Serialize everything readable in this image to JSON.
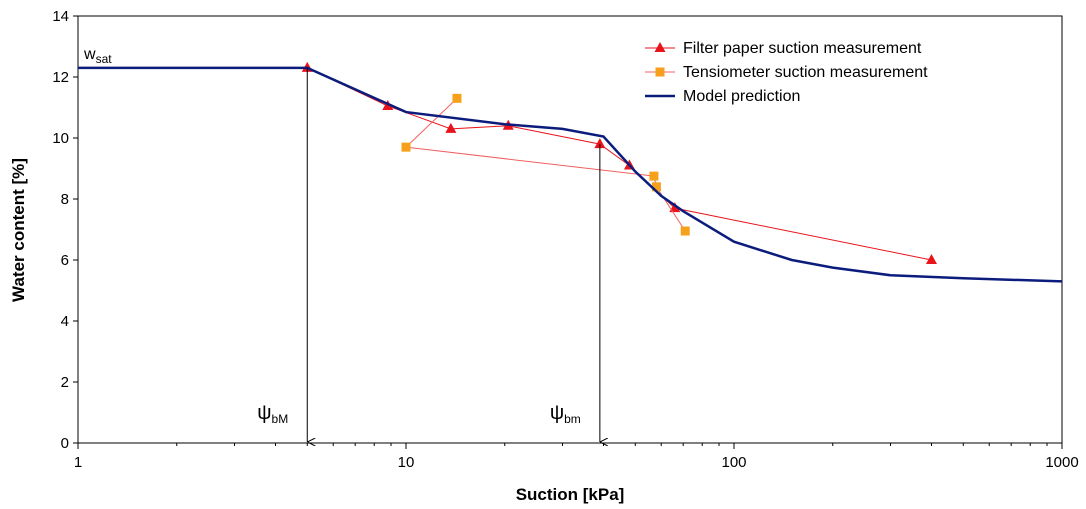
{
  "chart_data": {
    "type": "line",
    "x_label": "Suction [kPa]",
    "y_label": "Water content [%]",
    "xlog": true,
    "xlim": [
      1,
      1000
    ],
    "xticks": [
      1,
      10,
      100,
      1000
    ],
    "xminorticks": [
      2,
      3,
      4,
      5,
      6,
      7,
      8,
      9,
      20,
      30,
      40,
      50,
      60,
      70,
      80,
      90,
      200,
      300,
      400,
      500,
      600,
      700,
      800,
      900
    ],
    "ylim": [
      0,
      14
    ],
    "yticks": [
      0,
      2,
      4,
      6,
      8,
      10,
      12,
      14
    ],
    "legend": "top-right",
    "series": [
      {
        "name": "Filter paper suction measurement",
        "color": "#e8131b",
        "line_color": "#e8131b",
        "marker": "triangle",
        "x": [
          5,
          8.8,
          13.7,
          20.5,
          39,
          48,
          66,
          400
        ],
        "values": [
          12.3,
          11.05,
          10.3,
          10.4,
          9.8,
          9.1,
          7.7,
          6.0
        ]
      },
      {
        "name": "Tensiometer suction measurement",
        "color": "#f7a01c",
        "line_color": "#f06060",
        "marker": "square",
        "x": [
          14.3,
          10,
          57,
          58,
          71
        ],
        "values": [
          11.3,
          9.7,
          8.75,
          8.4,
          6.95
        ]
      },
      {
        "name": "Model prediction",
        "color": "#0b1c7c",
        "line_color": "#0b1c7c",
        "marker": "none",
        "x": [
          1,
          5,
          10,
          20,
          30,
          40,
          50,
          60,
          70,
          100,
          150,
          200,
          300,
          500,
          1000
        ],
        "values": [
          12.3,
          12.3,
          10.85,
          10.45,
          10.3,
          10.05,
          8.9,
          8.1,
          7.6,
          6.6,
          6.0,
          5.75,
          5.5,
          5.4,
          5.3
        ]
      }
    ],
    "annotations": [
      {
        "text": "w",
        "sub": "sat",
        "x": 1,
        "y": 12.3,
        "arrow": false
      },
      {
        "text": "ψ",
        "sub": "bM",
        "x": 5,
        "y": 12.3,
        "arrow": true
      },
      {
        "text": "ψ",
        "sub": "bm",
        "x": 39,
        "y": 9.8,
        "arrow": true
      }
    ]
  }
}
